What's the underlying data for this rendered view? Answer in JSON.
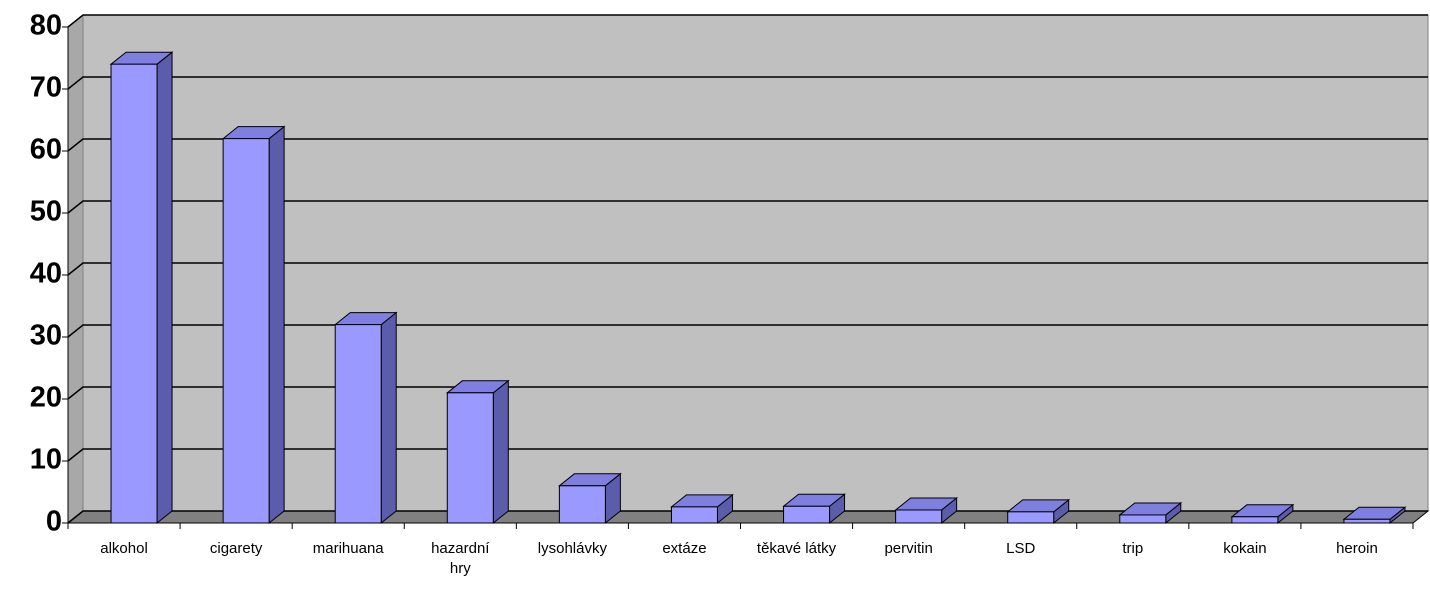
{
  "chart_data": {
    "type": "bar3d",
    "categories": [
      "alkohol",
      "cigarety",
      "marihuana",
      "hazardní hry",
      "lysohlávky",
      "extáze",
      "těkavé látky",
      "pervitin",
      "LSD",
      "trip",
      "kokain",
      "heroin"
    ],
    "values": [
      74,
      62,
      32,
      21,
      6,
      2.6,
      2.7,
      2.1,
      1.8,
      1.3,
      1,
      0.6
    ],
    "color": "#9999ff",
    "ylim": [
      0,
      80
    ],
    "yticks": [
      0,
      10,
      20,
      30,
      40,
      50,
      60,
      70,
      80
    ],
    "grid": true
  }
}
